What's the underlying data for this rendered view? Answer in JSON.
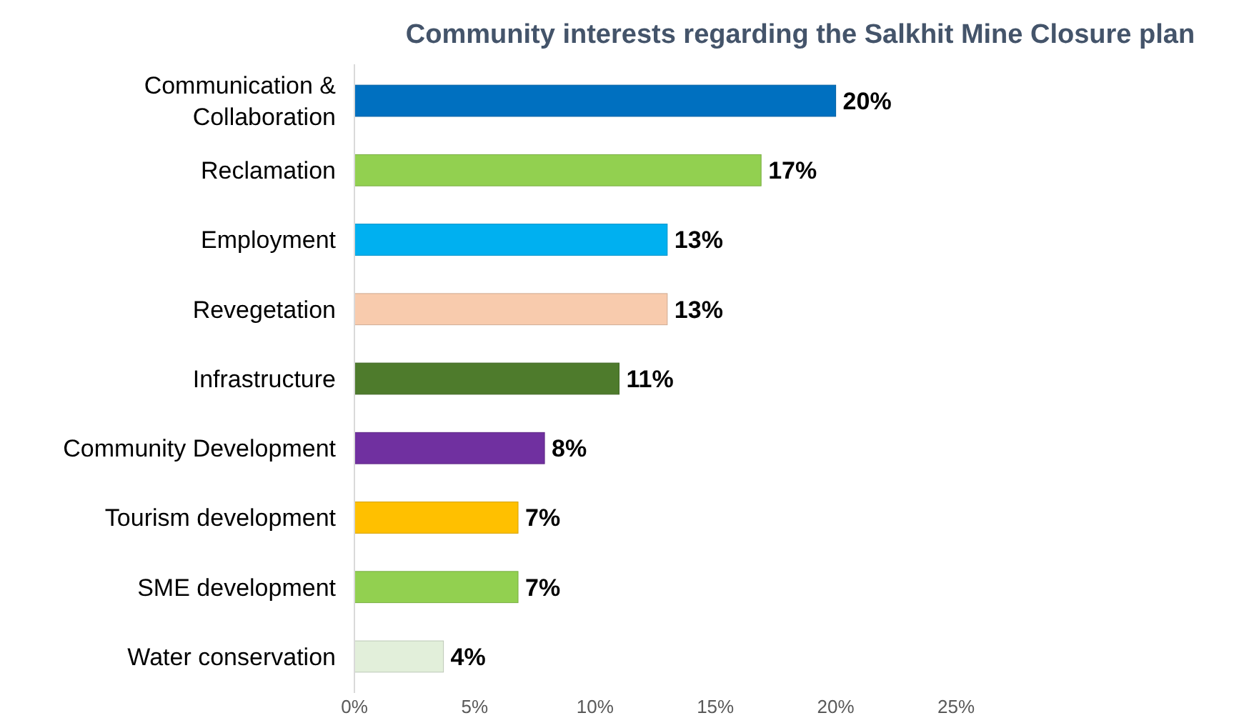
{
  "chart_data": {
    "type": "bar",
    "orientation": "horizontal",
    "title": "Community interests regarding the Salkhit Mine Closure plan",
    "categories": [
      "Communication & Collaboration",
      "Reclamation",
      "Employment",
      "Revegetation",
      "Infrastructure",
      "Community Development",
      "Tourism development",
      "SME development",
      "Water conservation"
    ],
    "values": [
      20,
      16.9,
      13,
      13,
      11,
      7.9,
      6.8,
      6.8,
      3.7
    ],
    "value_labels": [
      "20%",
      "17%",
      "13%",
      "13%",
      "11%",
      "8%",
      "7%",
      "7%",
      "4%"
    ],
    "colors": [
      "#0070c0",
      "#92d050",
      "#00b0f0",
      "#f8cbad",
      "#4e7b2c",
      "#7030a0",
      "#ffc000",
      "#92d050",
      "#e2efda"
    ],
    "xlim": [
      0,
      25
    ],
    "xticks": [
      {
        "value": 0,
        "label": "0%"
      },
      {
        "value": 5,
        "label": "5%"
      },
      {
        "value": 10,
        "label": "10%"
      },
      {
        "value": 15,
        "label": "15%"
      },
      {
        "value": 20,
        "label": "20%"
      },
      {
        "value": 25,
        "label": "25%"
      }
    ],
    "grid": false
  }
}
